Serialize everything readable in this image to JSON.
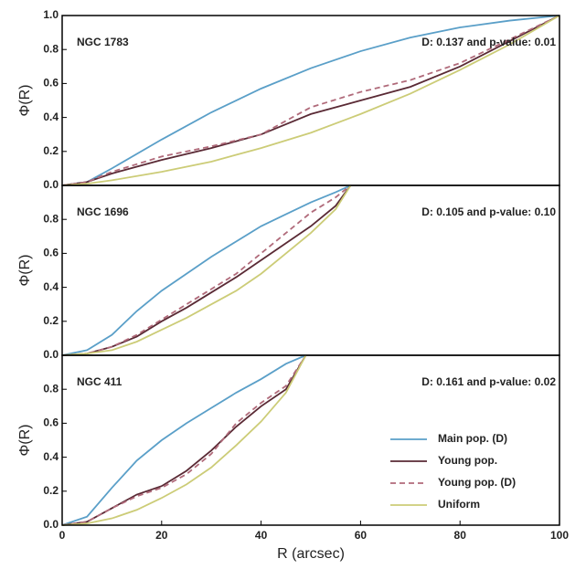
{
  "chart_data": [
    {
      "type": "line",
      "title": "NGC 1783",
      "annotation": "D: 0.137 and p-value: 0.01",
      "ylabel": "Φ(R)",
      "x": [
        0,
        5,
        10,
        20,
        30,
        40,
        50,
        60,
        70,
        80,
        90,
        100
      ],
      "series": [
        {
          "color": "#5a9fc8",
          "values": [
            0,
            0.02,
            0.1,
            0.27,
            0.43,
            0.57,
            0.69,
            0.79,
            0.87,
            0.93,
            0.97,
            1.0
          ]
        },
        {
          "color": "#5a2a35",
          "values": [
            0,
            0.02,
            0.07,
            0.15,
            0.22,
            0.3,
            0.42,
            0.5,
            0.58,
            0.7,
            0.85,
            1.0
          ]
        },
        {
          "color": "#b06a7a",
          "linestyle": "dashed",
          "values": [
            0,
            0.02,
            0.08,
            0.17,
            0.23,
            0.3,
            0.46,
            0.55,
            0.62,
            0.72,
            0.86,
            1.0
          ]
        },
        {
          "color": "#cccc77",
          "values": [
            0,
            0.01,
            0.03,
            0.08,
            0.14,
            0.22,
            0.31,
            0.42,
            0.54,
            0.68,
            0.83,
            1.0
          ]
        }
      ],
      "xlim": [
        0,
        100
      ],
      "ylim": [
        0,
        1
      ],
      "yticks": [
        {
          "value": 0,
          "label": "0.0"
        },
        0.2,
        0.4,
        0.6,
        0.8,
        {
          "value": 1,
          "label": "1.0"
        }
      ]
    },
    {
      "type": "line",
      "title": "NGC 1696",
      "annotation": "D: 0.105 and p-value: 0.10",
      "ylabel": "Φ(R)",
      "x": [
        0,
        5,
        10,
        15,
        20,
        25,
        30,
        35,
        40,
        45,
        50,
        55,
        58
      ],
      "series": [
        {
          "color": "#5a9fc8",
          "values": [
            0,
            0.03,
            0.12,
            0.26,
            0.38,
            0.48,
            0.58,
            0.67,
            0.76,
            0.83,
            0.9,
            0.96,
            1.0
          ]
        },
        {
          "color": "#5a2a35",
          "values": [
            0,
            0.01,
            0.05,
            0.11,
            0.2,
            0.28,
            0.37,
            0.46,
            0.56,
            0.66,
            0.76,
            0.88,
            1.0
          ]
        },
        {
          "color": "#b06a7a",
          "linestyle": "dashed",
          "values": [
            0,
            0.01,
            0.05,
            0.12,
            0.21,
            0.3,
            0.39,
            0.48,
            0.6,
            0.72,
            0.84,
            0.93,
            1.0
          ]
        },
        {
          "color": "#cccc77",
          "values": [
            0,
            0.01,
            0.03,
            0.08,
            0.15,
            0.22,
            0.3,
            0.38,
            0.48,
            0.6,
            0.72,
            0.86,
            1.0
          ]
        }
      ],
      "xlim": [
        0,
        100
      ],
      "ylim": [
        0,
        1
      ],
      "yticks": [
        {
          "value": 0,
          "label": "0.0"
        },
        0.2,
        0.4,
        0.6,
        0.8
      ]
    },
    {
      "type": "line",
      "title": "NGC 411",
      "annotation": "D: 0.161 and p-value: 0.02",
      "ylabel": "Φ(R)",
      "xlabel": "R (arcsec)",
      "x": [
        0,
        5,
        10,
        15,
        20,
        25,
        30,
        35,
        40,
        45,
        49
      ],
      "series": [
        {
          "name": "Main pop. (D)",
          "color": "#5a9fc8",
          "values": [
            0,
            0.05,
            0.22,
            0.38,
            0.5,
            0.6,
            0.69,
            0.78,
            0.86,
            0.95,
            1.0
          ]
        },
        {
          "name": "Young pop.",
          "color": "#5a2a35",
          "values": [
            0,
            0.02,
            0.1,
            0.18,
            0.23,
            0.32,
            0.44,
            0.58,
            0.7,
            0.8,
            1.0
          ]
        },
        {
          "name": "Young pop. (D)",
          "color": "#b06a7a",
          "linestyle": "dashed",
          "values": [
            0,
            0.02,
            0.1,
            0.17,
            0.22,
            0.3,
            0.42,
            0.6,
            0.72,
            0.82,
            1.0
          ]
        },
        {
          "name": "Uniform",
          "color": "#cccc77",
          "values": [
            0,
            0.01,
            0.04,
            0.09,
            0.16,
            0.24,
            0.34,
            0.47,
            0.61,
            0.78,
            1.0
          ]
        }
      ],
      "xlim": [
        0,
        100
      ],
      "ylim": [
        0,
        1
      ],
      "yticks": [
        {
          "value": 0,
          "label": "0.0"
        },
        0.2,
        0.4,
        0.6,
        0.8
      ],
      "xticks": [
        0,
        20,
        40,
        60,
        80,
        100
      ],
      "legend": "lower right"
    }
  ]
}
